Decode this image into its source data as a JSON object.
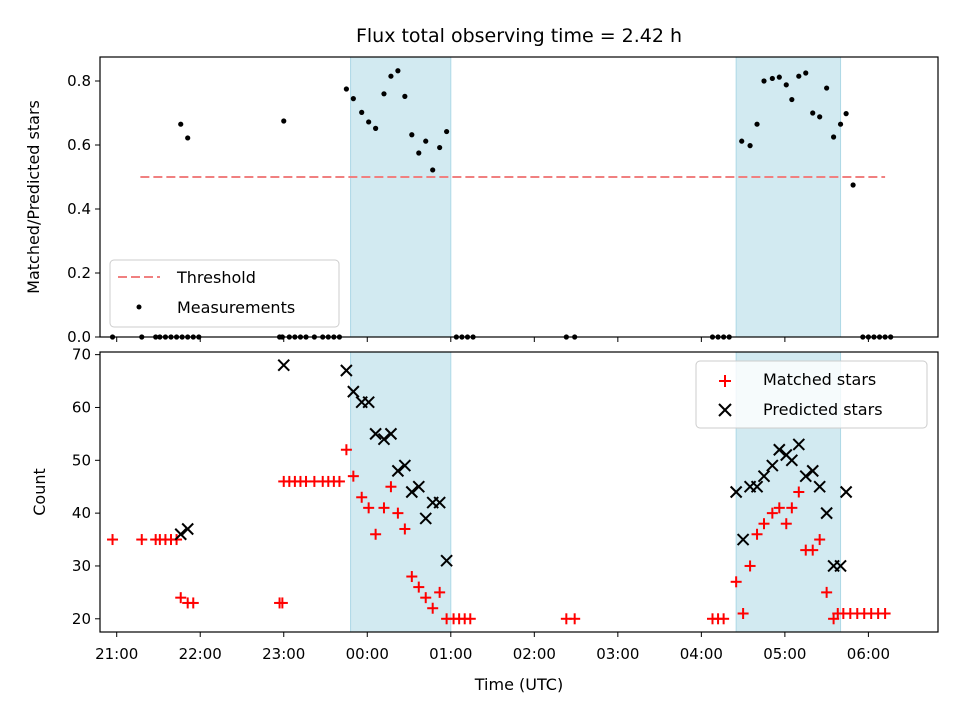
{
  "chart_data": [
    {
      "type": "scatter",
      "title": "Flux total observing time = 2.42 h",
      "ylabel": "Matched/Predicted stars",
      "xlabel": "",
      "xlim": [
        "20:48",
        "06:50"
      ],
      "ylim": [
        0,
        0.875
      ],
      "yticks": [
        0.0,
        0.2,
        0.4,
        0.6,
        0.8
      ],
      "ytick_labels": [
        "0.0",
        "0.2",
        "0.4",
        "0.6",
        "0.8"
      ],
      "shaded_intervals": [
        [
          "23:48",
          "01:00"
        ],
        [
          "04:25",
          "05:40"
        ]
      ],
      "shade_color": "#add8e6",
      "threshold": {
        "name": "Threshold",
        "y": 0.5,
        "x_range": [
          "21:17",
          "06:12"
        ],
        "color": "#f08080",
        "style": "dashed"
      },
      "series": [
        {
          "name": "Measurements",
          "color": "#000000",
          "marker": "dot",
          "points": [
            [
              "20:57",
              0
            ],
            [
              "21:18",
              0
            ],
            [
              "21:28",
              0
            ],
            [
              "21:31",
              0
            ],
            [
              "21:35",
              0
            ],
            [
              "21:39",
              0
            ],
            [
              "21:43",
              0
            ],
            [
              "21:47",
              0
            ],
            [
              "21:51",
              0
            ],
            [
              "21:55",
              0
            ],
            [
              "21:59",
              0
            ],
            [
              "21:46",
              0.665
            ],
            [
              "21:51",
              0.622
            ],
            [
              "22:57",
              0
            ],
            [
              "22:59",
              0
            ],
            [
              "23:00",
              0.675
            ],
            [
              "23:04",
              0
            ],
            [
              "23:08",
              0
            ],
            [
              "23:12",
              0
            ],
            [
              "23:16",
              0
            ],
            [
              "23:22",
              0
            ],
            [
              "23:28",
              0
            ],
            [
              "23:32",
              0
            ],
            [
              "23:36",
              0
            ],
            [
              "23:40",
              0
            ],
            [
              "23:45",
              0.775
            ],
            [
              "23:50",
              0.745
            ],
            [
              "23:56",
              0.702
            ],
            [
              "00:01",
              0.672
            ],
            [
              "00:06",
              0.652
            ],
            [
              "00:12",
              0.76
            ],
            [
              "00:17",
              0.815
            ],
            [
              "00:22",
              0.832
            ],
            [
              "00:27",
              0.752
            ],
            [
              "00:32",
              0.632
            ],
            [
              "00:37",
              0.575
            ],
            [
              "00:42",
              0.612
            ],
            [
              "00:47",
              0.522
            ],
            [
              "00:52",
              0.592
            ],
            [
              "00:57",
              0.642
            ],
            [
              "01:04",
              0
            ],
            [
              "01:08",
              0
            ],
            [
              "01:12",
              0
            ],
            [
              "01:16",
              0
            ],
            [
              "02:23",
              0
            ],
            [
              "02:29",
              0
            ],
            [
              "04:08",
              0
            ],
            [
              "04:12",
              0
            ],
            [
              "04:16",
              0
            ],
            [
              "04:20",
              0
            ],
            [
              "04:29",
              0.612
            ],
            [
              "04:35",
              0.598
            ],
            [
              "04:40",
              0.665
            ],
            [
              "04:45",
              0.8
            ],
            [
              "04:51",
              0.808
            ],
            [
              "04:56",
              0.812
            ],
            [
              "05:01",
              0.788
            ],
            [
              "05:05",
              0.742
            ],
            [
              "05:10",
              0.815
            ],
            [
              "05:15",
              0.825
            ],
            [
              "05:20",
              0.7
            ],
            [
              "05:25",
              0.688
            ],
            [
              "05:30",
              0.778
            ],
            [
              "05:35",
              0.625
            ],
            [
              "05:40",
              0.665
            ],
            [
              "05:44",
              0.698
            ],
            [
              "05:49",
              0.475
            ],
            [
              "05:56",
              0
            ],
            [
              "06:00",
              0
            ],
            [
              "06:04",
              0
            ],
            [
              "06:08",
              0
            ],
            [
              "06:12",
              0
            ],
            [
              "06:16",
              0
            ]
          ]
        }
      ],
      "legend": {
        "placement": "lower-left",
        "entries": [
          "Threshold",
          "Measurements"
        ]
      }
    },
    {
      "type": "scatter",
      "title": "",
      "ylabel": "Count",
      "xlabel": "Time (UTC)",
      "xlim": [
        "20:48",
        "06:50"
      ],
      "ylim": [
        17.5,
        70.5
      ],
      "yticks": [
        20,
        30,
        40,
        50,
        60,
        70
      ],
      "ytick_labels": [
        "20",
        "30",
        "40",
        "50",
        "60",
        "70"
      ],
      "xticks": [
        "21:00",
        "22:00",
        "23:00",
        "00:00",
        "01:00",
        "02:00",
        "03:00",
        "04:00",
        "05:00",
        "06:00"
      ],
      "shaded_intervals": [
        [
          "23:48",
          "01:00"
        ],
        [
          "04:25",
          "05:40"
        ]
      ],
      "shade_color": "#add8e6",
      "series": [
        {
          "name": "Matched stars",
          "color": "#ff0000",
          "marker": "plus",
          "points": [
            [
              "20:57",
              35
            ],
            [
              "21:18",
              35
            ],
            [
              "21:28",
              35
            ],
            [
              "21:31",
              35
            ],
            [
              "21:35",
              35
            ],
            [
              "21:39",
              35
            ],
            [
              "21:43",
              35
            ],
            [
              "21:46",
              24
            ],
            [
              "21:51",
              23
            ],
            [
              "21:55",
              23
            ],
            [
              "22:57",
              23
            ],
            [
              "22:59",
              23
            ],
            [
              "23:00",
              46
            ],
            [
              "23:04",
              46
            ],
            [
              "23:08",
              46
            ],
            [
              "23:12",
              46
            ],
            [
              "23:16",
              46
            ],
            [
              "23:22",
              46
            ],
            [
              "23:28",
              46
            ],
            [
              "23:32",
              46
            ],
            [
              "23:36",
              46
            ],
            [
              "23:40",
              46
            ],
            [
              "23:45",
              52
            ],
            [
              "23:50",
              47
            ],
            [
              "23:56",
              43
            ],
            [
              "00:01",
              41
            ],
            [
              "00:06",
              36
            ],
            [
              "00:12",
              41
            ],
            [
              "00:17",
              45
            ],
            [
              "00:22",
              40
            ],
            [
              "00:27",
              37
            ],
            [
              "00:32",
              28
            ],
            [
              "00:37",
              26
            ],
            [
              "00:42",
              24
            ],
            [
              "00:47",
              22
            ],
            [
              "00:52",
              25
            ],
            [
              "00:57",
              20
            ],
            [
              "01:02",
              20
            ],
            [
              "01:06",
              20
            ],
            [
              "01:10",
              20
            ],
            [
              "01:14",
              20
            ],
            [
              "02:23",
              20
            ],
            [
              "02:29",
              20
            ],
            [
              "04:08",
              20
            ],
            [
              "04:12",
              20
            ],
            [
              "04:16",
              20
            ],
            [
              "04:25",
              27
            ],
            [
              "04:30",
              21
            ],
            [
              "04:35",
              30
            ],
            [
              "04:40",
              36
            ],
            [
              "04:45",
              38
            ],
            [
              "04:51",
              40
            ],
            [
              "04:56",
              41
            ],
            [
              "05:01",
              38
            ],
            [
              "05:05",
              41
            ],
            [
              "05:10",
              44
            ],
            [
              "05:15",
              33
            ],
            [
              "05:20",
              33
            ],
            [
              "05:25",
              35
            ],
            [
              "05:30",
              25
            ],
            [
              "05:35",
              20
            ],
            [
              "05:38",
              21
            ],
            [
              "05:42",
              21
            ],
            [
              "05:47",
              21
            ],
            [
              "05:52",
              21
            ],
            [
              "05:57",
              21
            ],
            [
              "06:02",
              21
            ],
            [
              "06:07",
              21
            ],
            [
              "06:12",
              21
            ]
          ]
        },
        {
          "name": "Predicted stars",
          "color": "#000000",
          "marker": "x",
          "points": [
            [
              "21:46",
              36
            ],
            [
              "21:51",
              37
            ],
            [
              "23:00",
              68
            ],
            [
              "23:45",
              67
            ],
            [
              "23:50",
              63
            ],
            [
              "23:56",
              61
            ],
            [
              "00:01",
              61
            ],
            [
              "00:06",
              55
            ],
            [
              "00:12",
              54
            ],
            [
              "00:17",
              55
            ],
            [
              "00:22",
              48
            ],
            [
              "00:27",
              49
            ],
            [
              "00:32",
              44
            ],
            [
              "00:37",
              45
            ],
            [
              "00:42",
              39
            ],
            [
              "00:47",
              42
            ],
            [
              "00:52",
              42
            ],
            [
              "00:57",
              31
            ],
            [
              "04:25",
              44
            ],
            [
              "04:30",
              35
            ],
            [
              "04:35",
              45
            ],
            [
              "04:40",
              45
            ],
            [
              "04:45",
              47
            ],
            [
              "04:51",
              49
            ],
            [
              "04:56",
              52
            ],
            [
              "05:01",
              51
            ],
            [
              "05:05",
              50
            ],
            [
              "05:10",
              53
            ],
            [
              "05:15",
              47
            ],
            [
              "05:20",
              48
            ],
            [
              "05:25",
              45
            ],
            [
              "05:30",
              40
            ],
            [
              "05:35",
              30
            ],
            [
              "05:40",
              30
            ],
            [
              "05:44",
              44
            ]
          ]
        }
      ],
      "legend": {
        "placement": "top-right",
        "entries": [
          "Matched stars",
          "Predicted stars"
        ]
      }
    }
  ]
}
